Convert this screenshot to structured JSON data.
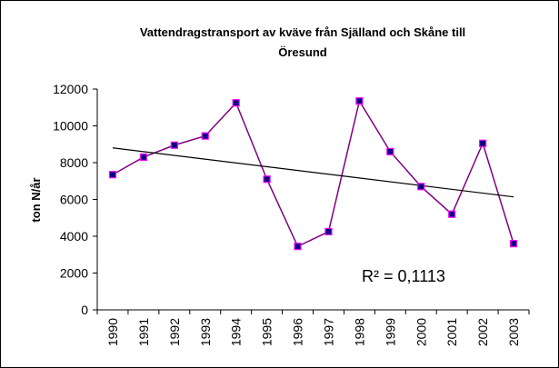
{
  "chart_data": {
    "type": "line",
    "title": [
      "Vattendragstransport av kväve från Själland och Skåne till",
      "Öresund"
    ],
    "y_label": "ton N/år",
    "categories": [
      "1990",
      "1991",
      "1992",
      "1993",
      "1994",
      "1995",
      "1996",
      "1997",
      "1998",
      "1999",
      "2000",
      "2001",
      "2002",
      "2003"
    ],
    "series": [
      {
        "color": "#800080",
        "marker_color": "#000080",
        "marker_edge": "#ff00ff",
        "values": [
          7350,
          8300,
          8950,
          9450,
          11250,
          7100,
          3450,
          4250,
          11350,
          8600,
          6700,
          5200,
          9050,
          3600
        ]
      }
    ],
    "trendline": "linear",
    "trendline_color": "#000000",
    "annotation": "R² = 0,1113",
    "ylim": [
      0,
      12000
    ],
    "yticks": [
      0,
      2000,
      4000,
      6000,
      8000,
      10000,
      12000
    ],
    "grid": false
  }
}
